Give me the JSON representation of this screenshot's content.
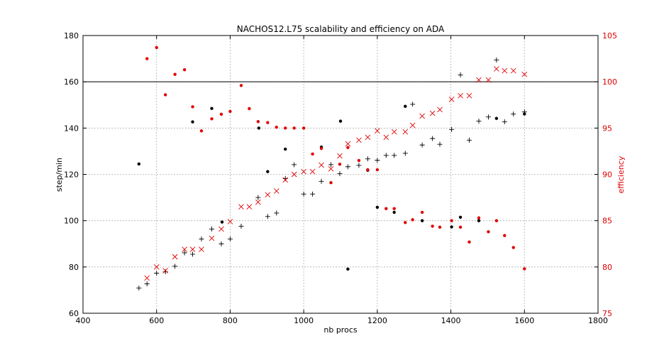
{
  "chart_data": {
    "type": "scatter",
    "title": "NACHOS12.L75 scalability and efficiency on ADA",
    "xlabel": "nb procs",
    "ylabel": "step/min",
    "y2label": "efficiency",
    "xlim": [
      400,
      1800
    ],
    "ylim": [
      60,
      180
    ],
    "y2lim": [
      75,
      105
    ],
    "xticks": [
      400,
      600,
      800,
      1000,
      1200,
      1400,
      1600,
      1800
    ],
    "yticks": [
      60,
      80,
      100,
      120,
      140,
      160,
      180
    ],
    "y2ticks": [
      75,
      80,
      85,
      90,
      95,
      100,
      105
    ],
    "grid": true,
    "reference_line_y2": 100,
    "colors": {
      "black": "#000000",
      "red": "#e00000"
    },
    "series": [
      {
        "marker": "plus",
        "color": "#000000",
        "axis": "left",
        "points": [
          [
            552,
            70.9
          ],
          [
            574,
            72.7
          ],
          [
            600,
            77.3
          ],
          [
            624,
            77.9
          ],
          [
            650,
            80.3
          ],
          [
            676,
            86.1
          ],
          [
            698,
            85.5
          ],
          [
            722,
            92.1
          ],
          [
            750,
            96.4
          ],
          [
            776,
            90.0
          ],
          [
            800,
            92.1
          ],
          [
            830,
            97.6
          ],
          [
            876,
            110.0
          ],
          [
            902,
            101.8
          ],
          [
            926,
            103.3
          ],
          [
            950,
            118.2
          ],
          [
            974,
            124.2
          ],
          [
            1000,
            111.5
          ],
          [
            1024,
            111.5
          ],
          [
            1048,
            117.0
          ],
          [
            1074,
            124.2
          ],
          [
            1098,
            120.3
          ],
          [
            1120,
            123.3
          ],
          [
            1150,
            123.9
          ],
          [
            1174,
            126.7
          ],
          [
            1200,
            126.1
          ],
          [
            1224,
            128.2
          ],
          [
            1246,
            128.2
          ],
          [
            1276,
            129.1
          ],
          [
            1296,
            150.3
          ],
          [
            1322,
            132.7
          ],
          [
            1350,
            135.5
          ],
          [
            1370,
            133.0
          ],
          [
            1402,
            139.4
          ],
          [
            1426,
            163.0
          ],
          [
            1450,
            134.8
          ],
          [
            1476,
            143.0
          ],
          [
            1502,
            144.8
          ],
          [
            1524,
            169.4
          ],
          [
            1546,
            142.7
          ],
          [
            1570,
            146.1
          ],
          [
            1600,
            147.0
          ]
        ]
      },
      {
        "marker": "dot",
        "color": "#000000",
        "axis": "left",
        "points": [
          [
            552,
            124.5
          ],
          [
            698,
            142.7
          ],
          [
            750,
            148.5
          ],
          [
            778,
            99.4
          ],
          [
            878,
            140.0
          ],
          [
            902,
            121.2
          ],
          [
            950,
            130.9
          ],
          [
            1048,
            131.8
          ],
          [
            1100,
            143.0
          ],
          [
            1120,
            79.1
          ],
          [
            1174,
            121.8
          ],
          [
            1200,
            105.8
          ],
          [
            1246,
            103.6
          ],
          [
            1276,
            149.4
          ],
          [
            1322,
            100.0
          ],
          [
            1402,
            97.3
          ],
          [
            1426,
            101.5
          ],
          [
            1476,
            100.0
          ],
          [
            1524,
            144.2
          ],
          [
            1600,
            146.1
          ]
        ]
      },
      {
        "marker": "cross",
        "color": "#e00000",
        "axis": "right",
        "points": [
          [
            574,
            78.8
          ],
          [
            600,
            80.0
          ],
          [
            624,
            79.6
          ],
          [
            650,
            81.1
          ],
          [
            676,
            81.9
          ],
          [
            698,
            81.9
          ],
          [
            722,
            81.9
          ],
          [
            750,
            83.1
          ],
          [
            776,
            84.1
          ],
          [
            800,
            84.9
          ],
          [
            830,
            86.5
          ],
          [
            852,
            86.5
          ],
          [
            876,
            87.0
          ],
          [
            902,
            87.8
          ],
          [
            926,
            88.2
          ],
          [
            950,
            89.4
          ],
          [
            974,
            90.0
          ],
          [
            1000,
            90.3
          ],
          [
            1024,
            90.3
          ],
          [
            1048,
            91.0
          ],
          [
            1074,
            90.6
          ],
          [
            1098,
            92.0
          ],
          [
            1120,
            93.3
          ],
          [
            1150,
            93.7
          ],
          [
            1174,
            94.0
          ],
          [
            1200,
            94.7
          ],
          [
            1224,
            94.0
          ],
          [
            1246,
            94.6
          ],
          [
            1276,
            94.6
          ],
          [
            1296,
            95.3
          ],
          [
            1322,
            96.3
          ],
          [
            1350,
            96.6
          ],
          [
            1370,
            97.0
          ],
          [
            1402,
            98.1
          ],
          [
            1426,
            98.5
          ],
          [
            1450,
            98.5
          ],
          [
            1476,
            100.2
          ],
          [
            1502,
            100.2
          ],
          [
            1524,
            101.4
          ],
          [
            1546,
            101.2
          ],
          [
            1570,
            101.2
          ],
          [
            1600,
            100.8
          ]
        ]
      },
      {
        "marker": "dot",
        "color": "#e00000",
        "axis": "right",
        "points": [
          [
            574,
            102.5
          ],
          [
            600,
            103.7
          ],
          [
            624,
            98.6
          ],
          [
            650,
            100.8
          ],
          [
            676,
            101.3
          ],
          [
            698,
            97.3
          ],
          [
            722,
            94.7
          ],
          [
            750,
            96.0
          ],
          [
            776,
            96.5
          ],
          [
            800,
            96.8
          ],
          [
            830,
            99.6
          ],
          [
            852,
            97.1
          ],
          [
            876,
            95.7
          ],
          [
            902,
            95.6
          ],
          [
            926,
            95.1
          ],
          [
            950,
            95.0
          ],
          [
            974,
            95.0
          ],
          [
            1000,
            95.0
          ],
          [
            1024,
            92.2
          ],
          [
            1048,
            92.8
          ],
          [
            1074,
            89.1
          ],
          [
            1098,
            91.1
          ],
          [
            1120,
            92.9
          ],
          [
            1150,
            91.5
          ],
          [
            1174,
            90.5
          ],
          [
            1200,
            90.5
          ],
          [
            1224,
            86.3
          ],
          [
            1246,
            86.3
          ],
          [
            1276,
            84.8
          ],
          [
            1296,
            85.1
          ],
          [
            1322,
            85.9
          ],
          [
            1350,
            84.4
          ],
          [
            1370,
            84.3
          ],
          [
            1402,
            85.0
          ],
          [
            1426,
            84.3
          ],
          [
            1450,
            82.7
          ],
          [
            1476,
            85.3
          ],
          [
            1502,
            83.8
          ],
          [
            1524,
            85.0
          ],
          [
            1546,
            83.4
          ],
          [
            1570,
            82.1
          ],
          [
            1600,
            79.8
          ]
        ]
      }
    ]
  }
}
